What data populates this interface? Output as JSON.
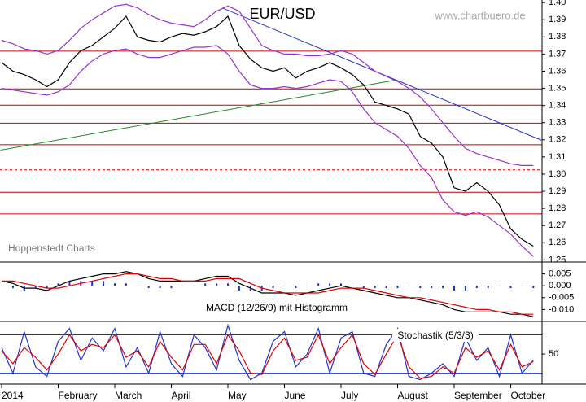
{
  "chart_data": [
    {
      "type": "line",
      "title": "EUR/USD",
      "source": "www.chartbuero.de",
      "credit": "Hoppenstedt Charts",
      "ylim": [
        1.2497,
        1.4015
      ],
      "yticks": [
        {
          "value": 1.25,
          "label": "1.25"
        },
        {
          "value": 1.26,
          "label": "1.26"
        },
        {
          "value": 1.27,
          "label": "1.27"
        },
        {
          "value": 1.28,
          "label": "1.28"
        },
        {
          "value": 1.29,
          "label": "1.29"
        },
        {
          "value": 1.3,
          "label": "1.30"
        },
        {
          "value": 1.31,
          "label": "1.31"
        },
        {
          "value": 1.32,
          "label": "1.32"
        },
        {
          "value": 1.33,
          "label": "1.33"
        },
        {
          "value": 1.34,
          "label": "1.34"
        },
        {
          "value": 1.35,
          "label": "1.35"
        },
        {
          "value": 1.36,
          "label": "1.36"
        },
        {
          "value": 1.37,
          "label": "1.37"
        },
        {
          "value": 1.38,
          "label": "1.38"
        },
        {
          "value": 1.39,
          "label": "1.39"
        },
        {
          "value": 1.4,
          "label": "1.40"
        }
      ],
      "hlines": {
        "color": "#cc0000",
        "values": [
          1.3717,
          1.3497,
          1.3402,
          1.3297,
          1.3171,
          1.3025,
          1.2894,
          1.2768
        ],
        "dashed": [
          false,
          false,
          false,
          false,
          false,
          true,
          false,
          false
        ]
      },
      "trendlines": [
        {
          "color": "#2233cc",
          "x": [
            19.5,
            47.7
          ],
          "values": [
            1.3969,
            1.3198
          ]
        },
        {
          "color": "#228822",
          "x": [
            -0.1,
            34.9
          ],
          "values": [
            1.314,
            1.3549
          ]
        }
      ],
      "series": [
        {
          "color": "#9933cc",
          "values": [
            1.378,
            1.376,
            1.373,
            1.372,
            1.37,
            1.372,
            1.378,
            1.385,
            1.39,
            1.394,
            1.398,
            1.399,
            1.397,
            1.393,
            1.39,
            1.388,
            1.387,
            1.386,
            1.39,
            1.395,
            1.398,
            1.395,
            1.385,
            1.375,
            1.372,
            1.37,
            1.37,
            1.369,
            1.369,
            1.37,
            1.372,
            1.37,
            1.365,
            1.36,
            1.357,
            1.354,
            1.35,
            1.345,
            1.338,
            1.33,
            1.322,
            1.315,
            1.312,
            1.31,
            1.308,
            1.306,
            1.305,
            1.305
          ]
        },
        {
          "color": "#9933cc",
          "values": [
            1.35,
            1.349,
            1.348,
            1.347,
            1.346,
            1.348,
            1.352,
            1.36,
            1.366,
            1.37,
            1.372,
            1.373,
            1.37,
            1.368,
            1.368,
            1.37,
            1.372,
            1.374,
            1.374,
            1.375,
            1.37,
            1.36,
            1.352,
            1.35,
            1.35,
            1.351,
            1.35,
            1.351,
            1.353,
            1.355,
            1.354,
            1.348,
            1.338,
            1.33,
            1.326,
            1.322,
            1.315,
            1.305,
            1.298,
            1.285,
            1.278,
            1.276,
            1.278,
            1.275,
            1.27,
            1.265,
            1.258,
            1.252
          ]
        },
        {
          "color": "#000000",
          "values": [
            1.365,
            1.36,
            1.358,
            1.355,
            1.351,
            1.355,
            1.365,
            1.372,
            1.375,
            1.38,
            1.385,
            1.392,
            1.38,
            1.378,
            1.377,
            1.38,
            1.382,
            1.381,
            1.383,
            1.386,
            1.392,
            1.375,
            1.367,
            1.362,
            1.36,
            1.362,
            1.356,
            1.36,
            1.362,
            1.365,
            1.362,
            1.358,
            1.352,
            1.342,
            1.34,
            1.338,
            1.335,
            1.322,
            1.318,
            1.31,
            1.292,
            1.29,
            1.295,
            1.29,
            1.282,
            1.268,
            1.262,
            1.258
          ]
        }
      ]
    },
    {
      "type": "line",
      "label": "MACD (12/26/9) mit Histogramm",
      "ylim": [
        -0.015,
        0.01
      ],
      "yticks": [
        {
          "value": 0.005,
          "label": "0.005"
        },
        {
          "value": 0,
          "label": "0.000"
        },
        {
          "value": -0.005,
          "label": "-0.005"
        },
        {
          "value": -0.01,
          "label": "-0.010"
        }
      ],
      "series": [
        {
          "type": "bar",
          "color": "#2233cc",
          "values": [
            0,
            -0.001,
            -0.002,
            -0.001,
            -0.001,
            0.001,
            0.002,
            0.002,
            0.002,
            0.002,
            0.001,
            0.001,
            0,
            -0.001,
            -0.001,
            -0.001,
            0,
            0,
            0.001,
            0.001,
            0.001,
            -0.002,
            -0.002,
            -0.002,
            -0.001,
            0,
            -0.001,
            0,
            0.001,
            0.001,
            0.001,
            0,
            -0.001,
            -0.001,
            -0.001,
            -0.001,
            0,
            -0.001,
            -0.001,
            -0.001,
            -0.002,
            -0.002,
            -0.001,
            -0.001,
            0,
            -0.001,
            0,
            -0.001
          ]
        },
        {
          "color": "#000000",
          "values": [
            0.002,
            0.001,
            -0.001,
            -0.001,
            -0.002,
            0.0,
            0.002,
            0.003,
            0.004,
            0.005,
            0.005,
            0.006,
            0.005,
            0.003,
            0.002,
            0.002,
            0.002,
            0.002,
            0.003,
            0.004,
            0.004,
            0.001,
            -0.001,
            -0.003,
            -0.003,
            -0.003,
            -0.004,
            -0.003,
            -0.002,
            -0.001,
            0.0,
            -0.001,
            -0.002,
            -0.003,
            -0.004,
            -0.005,
            -0.005,
            -0.006,
            -0.007,
            -0.008,
            -0.01,
            -0.011,
            -0.011,
            -0.011,
            -0.011,
            -0.012,
            -0.012,
            -0.013
          ]
        },
        {
          "color": "#dd0000",
          "values": [
            0.002,
            0.002,
            0.001,
            0.0,
            -0.001,
            -0.001,
            0.0,
            0.001,
            0.002,
            0.003,
            0.004,
            0.005,
            0.005,
            0.004,
            0.003,
            0.003,
            0.002,
            0.002,
            0.002,
            0.003,
            0.003,
            0.003,
            0.001,
            -0.001,
            -0.002,
            -0.003,
            -0.003,
            -0.003,
            -0.003,
            -0.002,
            -0.001,
            -0.001,
            -0.001,
            -0.002,
            -0.003,
            -0.004,
            -0.005,
            -0.005,
            -0.006,
            -0.007,
            -0.008,
            -0.009,
            -0.01,
            -0.01,
            -0.011,
            -0.011,
            -0.012,
            -0.012
          ]
        }
      ]
    },
    {
      "type": "line",
      "label": "Stochastik (5/3/3)",
      "ylim": [
        3,
        101
      ],
      "yticks": [
        50
      ],
      "levels": {
        "color": "#2233cc",
        "values": [
          80,
          20
        ]
      },
      "categories": [
        "2014",
        null,
        null,
        null,
        null,
        "February",
        null,
        null,
        null,
        null,
        "March",
        null,
        null,
        null,
        null,
        "April",
        null,
        null,
        null,
        null,
        "May",
        null,
        null,
        null,
        null,
        "June",
        null,
        null,
        null,
        null,
        "July",
        null,
        null,
        null,
        null,
        "August",
        null,
        null,
        null,
        null,
        "September",
        null,
        null,
        null,
        null,
        "October",
        null,
        null
      ],
      "series": [
        {
          "color": "#2233cc",
          "values": [
            60,
            20,
            85,
            30,
            15,
            70,
            90,
            40,
            75,
            55,
            90,
            30,
            60,
            20,
            85,
            35,
            15,
            80,
            60,
            25,
            95,
            40,
            10,
            20,
            70,
            85,
            30,
            50,
            90,
            20,
            75,
            85,
            20,
            15,
            65,
            90,
            15,
            10,
            20,
            35,
            15,
            75,
            40,
            60,
            15,
            80,
            20,
            40
          ]
        },
        {
          "color": "#dd0000",
          "values": [
            55,
            35,
            60,
            45,
            25,
            50,
            80,
            55,
            65,
            60,
            80,
            45,
            55,
            30,
            70,
            45,
            25,
            65,
            65,
            35,
            80,
            55,
            20,
            18,
            55,
            75,
            40,
            45,
            80,
            35,
            60,
            80,
            35,
            18,
            50,
            80,
            30,
            12,
            15,
            30,
            20,
            60,
            45,
            55,
            25,
            65,
            30,
            38
          ]
        }
      ]
    }
  ]
}
